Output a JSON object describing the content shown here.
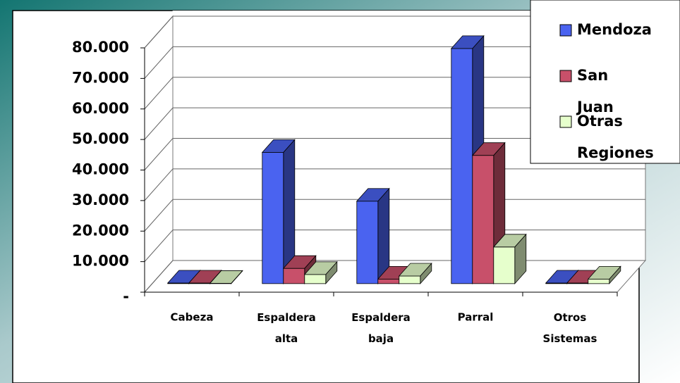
{
  "chart_data": {
    "type": "bar",
    "categories": [
      "Cabeza",
      "Espaldera alta",
      "Espaldera baja",
      "Parral",
      "Otros Sistemas"
    ],
    "series": [
      {
        "name": "Mendoza",
        "color": "#4a63f0",
        "values": [
          200,
          43000,
          27000,
          77000,
          200
        ]
      },
      {
        "name": "San Juan",
        "color": "#c8506a",
        "values": [
          200,
          5000,
          1500,
          42000,
          200
        ]
      },
      {
        "name": "Otras Regiones",
        "color": "#e6ffcc",
        "values": [
          100,
          3000,
          2500,
          12000,
          1500
        ]
      }
    ],
    "ylim": [
      0,
      80000
    ],
    "yticks": [
      {
        "value": 0,
        "label": "-"
      },
      {
        "value": 10000,
        "label": "10.000"
      },
      {
        "value": 20000,
        "label": "20.000"
      },
      {
        "value": 30000,
        "label": "30.000"
      },
      {
        "value": 40000,
        "label": "40.000"
      },
      {
        "value": 50000,
        "label": "50.000"
      },
      {
        "value": 60000,
        "label": "60.000"
      },
      {
        "value": 70000,
        "label": "70.000"
      },
      {
        "value": 80000,
        "label": "80.000"
      }
    ],
    "grid": true,
    "legend": "upper right"
  }
}
